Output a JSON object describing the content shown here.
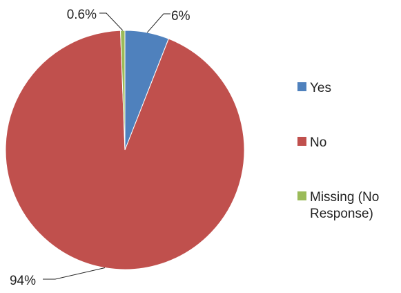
{
  "chart_data": {
    "type": "pie",
    "title": "",
    "slices": [
      {
        "label": "Yes",
        "value": 6,
        "data_label": "6%",
        "color": "#4F81BD"
      },
      {
        "label": "No",
        "value": 94,
        "data_label": "94%",
        "color": "#C0504D"
      },
      {
        "label": "Missing (No Response)",
        "value": 0.6,
        "data_label": "0.6%",
        "color": "#9BBB59"
      }
    ],
    "legend": {
      "position": "right",
      "items": [
        {
          "lines": [
            "Yes"
          ],
          "color": "#4F81BD"
        },
        {
          "lines": [
            "No"
          ],
          "color": "#C0504D"
        },
        {
          "lines": [
            "Missing (No",
            "Response)"
          ],
          "color": "#9BBB59"
        }
      ]
    }
  }
}
